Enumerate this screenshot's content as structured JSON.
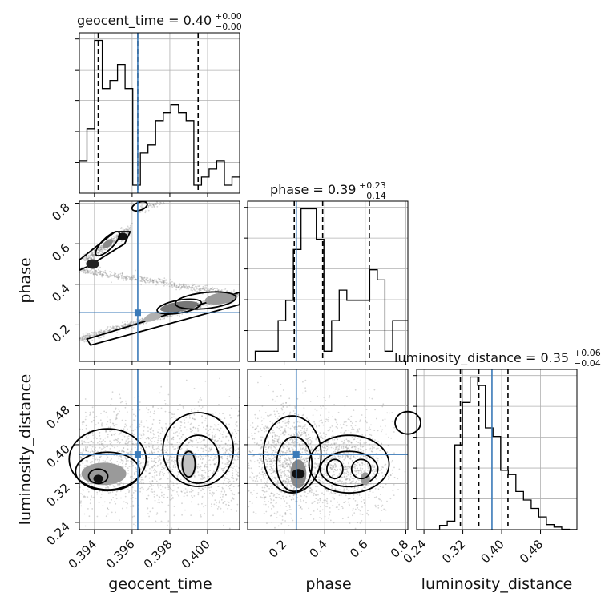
{
  "chart_data": {
    "type": "corner",
    "parameters": [
      "geocent_time",
      "phase",
      "luminosity_distance"
    ],
    "truths": {
      "geocent_time": 0.3963,
      "phase": 0.26,
      "luminosity_distance": 0.38
    },
    "ranges": {
      "geocent_time": [
        0.3932,
        0.4017
      ],
      "phase": [
        0.02,
        0.81
      ],
      "luminosity_distance": [
        0.225,
        0.555
      ]
    },
    "titles": [
      {
        "param": "geocent_time",
        "text": "geocent_time = 0.40",
        "sup": "+0.00",
        "sub": "−0.00"
      },
      {
        "param": "phase",
        "text": "phase = 0.39",
        "sup": "+0.23",
        "sub": "−0.14"
      },
      {
        "param": "luminosity_distance",
        "text": "luminosity_distance = 0.35",
        "sup": "+0.06",
        "sub": "−0.04"
      }
    ],
    "quantiles": {
      "geocent_time": [
        0.3942,
        0.3963,
        0.3995
      ],
      "phase": [
        0.25,
        0.39,
        0.62
      ],
      "luminosity_distance": [
        0.315,
        0.353,
        0.413
      ]
    },
    "ticks": {
      "geocent_time": [
        "0.394",
        "0.396",
        "0.398",
        "0.400"
      ],
      "phase": [
        "0.2",
        "0.4",
        "0.6",
        "0.8"
      ],
      "phase_y": [
        "0.2",
        "0.4",
        "0.6",
        "0.8"
      ],
      "luminosity_distance": [
        "0.24",
        "0.32",
        "0.40",
        "0.48"
      ]
    },
    "xlabels": [
      "geocent_time",
      "phase",
      "luminosity_distance"
    ],
    "ylabels": [
      "phase",
      "luminosity_distance"
    ],
    "histograms": {
      "geocent_time": {
        "range": [
          0.3932,
          0.4017
        ],
        "counts": [
          4,
          8,
          19,
          13,
          14,
          16,
          13,
          1,
          5,
          6,
          9,
          10,
          11,
          10,
          9,
          1,
          2,
          3,
          4,
          1,
          2
        ]
      },
      "phase": {
        "range": [
          0.02,
          0.81
        ],
        "counts": [
          0,
          1,
          1,
          1,
          4,
          6,
          11,
          15,
          15,
          12,
          1,
          4,
          7,
          6,
          6,
          6,
          9,
          8,
          1,
          4,
          4
        ]
      },
      "luminosity_distance": {
        "range": [
          0.225,
          0.555
        ],
        "counts": [
          0,
          0,
          0,
          0.5,
          1,
          10,
          15,
          18,
          17,
          12,
          11,
          7,
          6.5,
          4.5,
          3.5,
          2.5,
          1.5,
          0.6,
          0.3,
          0.05,
          0.01
        ]
      }
    }
  }
}
